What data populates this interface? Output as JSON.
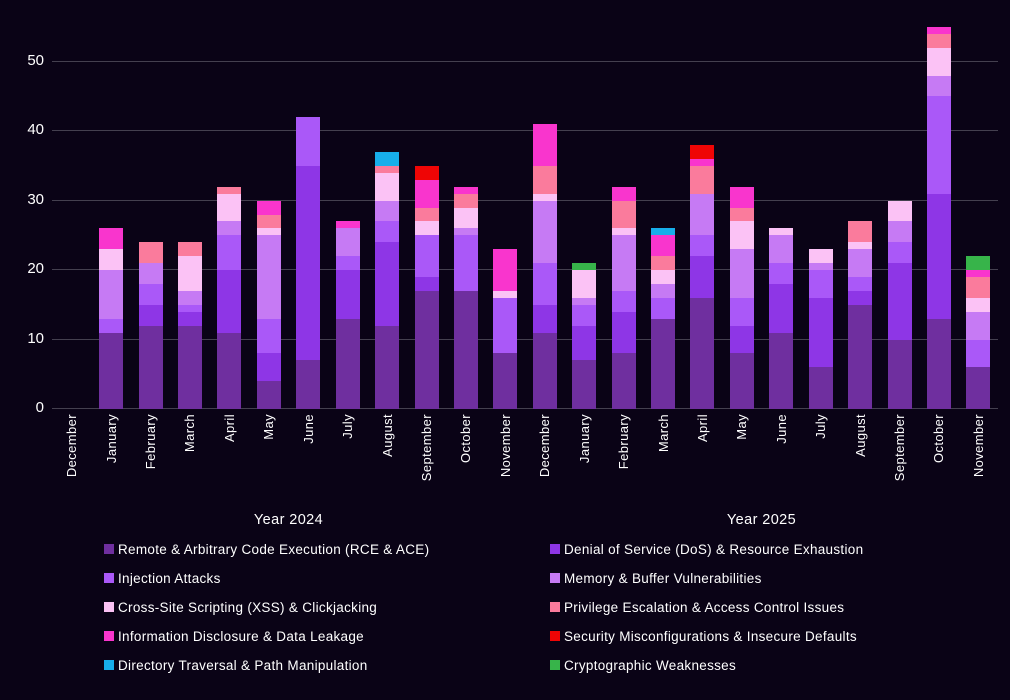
{
  "chart": {
    "background": "#0a0316",
    "gridline_color": "#44404f",
    "text_color": "#ffffff"
  },
  "chart_data": {
    "type": "bar",
    "subtype": "stacked-vertical",
    "grid": true,
    "legend_position": "bottom",
    "y_ticks": [
      0,
      10,
      20,
      30,
      40,
      50
    ],
    "ylim": [
      0,
      56
    ],
    "group_labels": [
      "Year 2024",
      "Year 2025"
    ],
    "group_size": 12,
    "categories": [
      "December",
      "January",
      "February",
      "March",
      "April",
      "May",
      "June",
      "July",
      "August",
      "September",
      "October",
      "November",
      "December",
      "January",
      "February",
      "March",
      "April",
      "May",
      "June",
      "July",
      "August",
      "September",
      "October",
      "November"
    ],
    "series": [
      {
        "name": "Remote & Arbitrary Code Execution (RCE & ACE)",
        "color": "#6f2f9f",
        "values": [
          0,
          11,
          12,
          12,
          11,
          4,
          7,
          13,
          12,
          17,
          17,
          8,
          11,
          7,
          8,
          13,
          16,
          8,
          11,
          6,
          15,
          10,
          13,
          6
        ]
      },
      {
        "name": "Denial of Service (DoS)  & Resource Exhaustion",
        "color": "#8e36e6",
        "values": [
          0,
          0,
          3,
          2,
          9,
          4,
          28,
          7,
          12,
          2,
          0,
          0,
          4,
          5,
          6,
          0,
          6,
          4,
          7,
          10,
          2,
          11,
          18,
          0
        ]
      },
      {
        "name": "Injection Attacks",
        "color": "#aa58f8",
        "values": [
          0,
          2,
          3,
          1,
          5,
          5,
          7,
          2,
          3,
          6,
          8,
          8,
          6,
          3,
          3,
          3,
          3,
          4,
          3,
          4,
          2,
          3,
          14,
          4
        ]
      },
      {
        "name": "Memory & Buffer Vulnerabilities",
        "color": "#c67af4",
        "values": [
          0,
          7,
          3,
          2,
          2,
          12,
          0,
          4,
          3,
          0,
          1,
          0,
          9,
          1,
          8,
          2,
          6,
          7,
          4,
          1,
          4,
          3,
          3,
          4
        ]
      },
      {
        "name": "Cross-Site Scripting (XSS) & Clickjacking",
        "color": "#fbc2f5",
        "values": [
          0,
          3,
          0,
          5,
          4,
          1,
          0,
          0,
          4,
          2,
          3,
          1,
          1,
          4,
          1,
          2,
          0,
          4,
          1,
          2,
          1,
          3,
          4,
          2
        ]
      },
      {
        "name": "Privilege Escalation & Access Control Issues",
        "color": "#fa7b9c",
        "values": [
          0,
          0,
          3,
          2,
          1,
          2,
          0,
          0,
          1,
          2,
          2,
          0,
          4,
          0,
          4,
          2,
          4,
          2,
          0,
          0,
          3,
          0,
          2,
          3
        ]
      },
      {
        "name": "Information Disclosure & Data Leakage",
        "color": "#f935cd",
        "values": [
          0,
          3,
          0,
          0,
          0,
          2,
          0,
          1,
          0,
          4,
          1,
          6,
          6,
          0,
          2,
          3,
          1,
          3,
          0,
          0,
          0,
          0,
          1,
          1
        ]
      },
      {
        "name": "Security Misconfigurations & Insecure Defaults",
        "color": "#ef0505",
        "values": [
          0,
          0,
          0,
          0,
          0,
          0,
          0,
          0,
          0,
          2,
          0,
          0,
          0,
          0,
          0,
          0,
          2,
          0,
          0,
          0,
          0,
          0,
          0,
          0
        ]
      },
      {
        "name": "Directory Traversal & Path Manipulation",
        "color": "#17aeea",
        "values": [
          0,
          0,
          0,
          0,
          0,
          0,
          0,
          0,
          2,
          0,
          0,
          0,
          0,
          0,
          0,
          1,
          0,
          0,
          0,
          0,
          0,
          0,
          0,
          0
        ]
      },
      {
        "name": "Cryptographic Weaknesses",
        "color": "#37b44a",
        "values": [
          0,
          0,
          0,
          0,
          0,
          0,
          0,
          0,
          0,
          0,
          0,
          0,
          0,
          1,
          0,
          0,
          0,
          0,
          0,
          0,
          0,
          0,
          0,
          2
        ]
      }
    ],
    "totals": [
      0,
      26,
      24,
      24,
      32,
      30,
      42,
      27,
      37,
      35,
      32,
      23,
      41,
      21,
      32,
      26,
      38,
      32,
      26,
      23,
      27,
      30,
      55,
      22
    ]
  }
}
